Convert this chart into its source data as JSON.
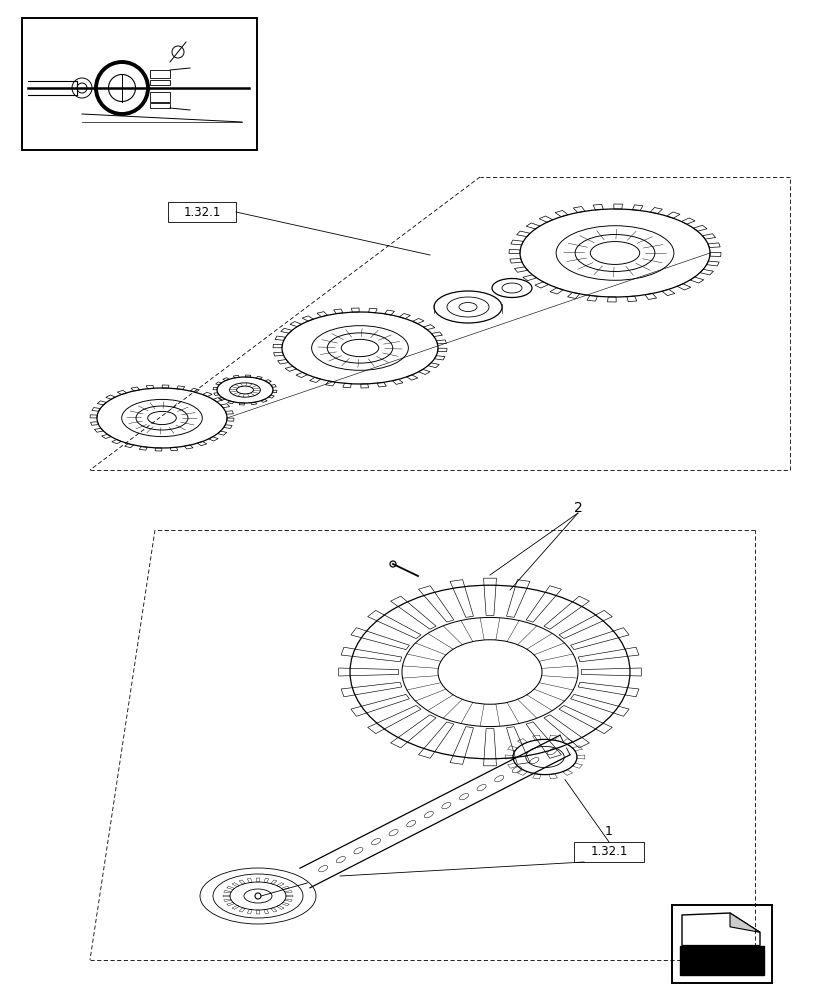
{
  "bg_color": "#ffffff",
  "line_color": "#000000",
  "label_1_32_1_top": "1.32.1",
  "label_1_32_1_bottom": "1.32.1",
  "label_2": "2",
  "label_1": "1"
}
